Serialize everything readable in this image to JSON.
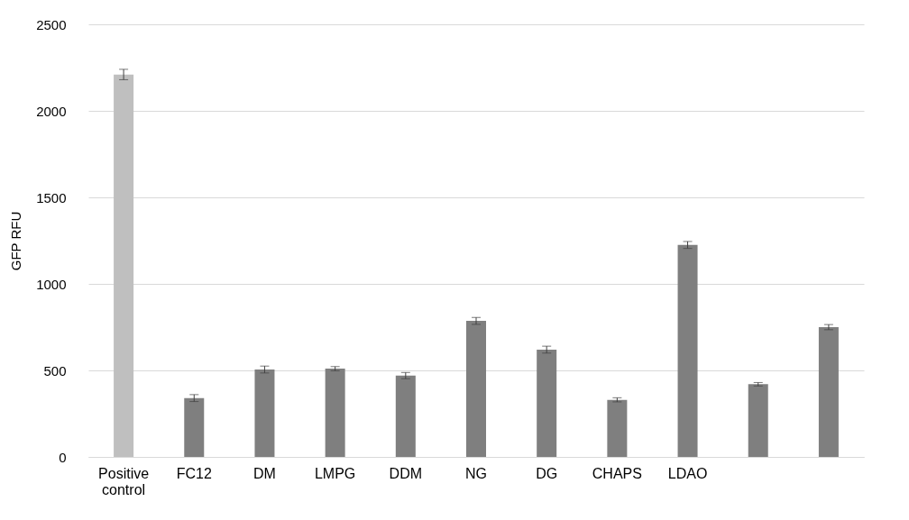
{
  "chart_data": {
    "type": "bar",
    "ylabel": "GFP RFU",
    "categories": [
      "Positive control",
      "FC12",
      "DM",
      "LMPG",
      "DDM",
      "NG",
      "DG",
      "CHAPS",
      "LDAO",
      null,
      null
    ],
    "values": [
      2210,
      340,
      505,
      510,
      470,
      786,
      620,
      330,
      1225,
      420,
      750
    ],
    "colors": [
      "#bfbfbf",
      "#7f7f7f",
      "#7f7f7f",
      "#7f7f7f",
      "#7f7f7f",
      "#7f7f7f",
      "#7f7f7f",
      "#7f7f7f",
      "#7f7f7f",
      "#7f7f7f",
      "#7f7f7f"
    ],
    "errors": [
      30,
      20,
      20,
      12,
      18,
      20,
      20,
      12,
      20,
      10,
      15
    ],
    "ylim": [
      0,
      2500
    ],
    "yticks": [
      0,
      500,
      1000,
      1500,
      2000,
      2500
    ],
    "grid": "y"
  }
}
